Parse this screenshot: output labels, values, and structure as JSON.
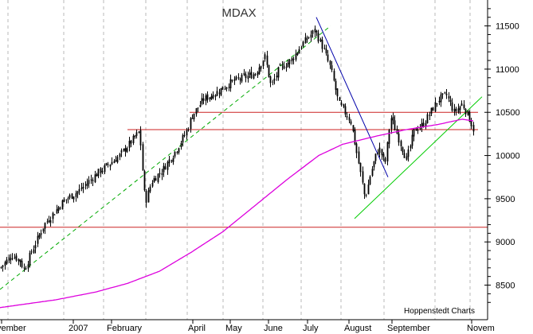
{
  "chart_data": {
    "type": "candlestick",
    "title": "MDAX",
    "credit": "Hoppenstedt Charts",
    "x_tick_labels": [
      "vember",
      "2007",
      "February",
      "April",
      "May",
      "June",
      "July",
      "August",
      "September",
      "Novem"
    ],
    "y_tick_labels": [
      "11500",
      "11000",
      "10500",
      "10000",
      "9500",
      "9000",
      "8500"
    ],
    "ylim": [
      8100,
      11800
    ],
    "grid": "vertical dashed gridlines at month boundaries",
    "horizontal_levels": [
      10500,
      10300,
      9170
    ],
    "moving_average": {
      "color": "#dd00dd",
      "anchors": [
        [
          0,
          8240
        ],
        [
          70,
          8330
        ],
        [
          120,
          8420
        ],
        [
          160,
          8520
        ],
        [
          200,
          8660
        ],
        [
          240,
          8880
        ],
        [
          280,
          9120
        ],
        [
          320,
          9420
        ],
        [
          360,
          9720
        ],
        [
          400,
          10000
        ],
        [
          430,
          10130
        ],
        [
          470,
          10220
        ],
        [
          510,
          10300
        ],
        [
          550,
          10360
        ],
        [
          580,
          10420
        ],
        [
          595,
          10400
        ]
      ]
    },
    "price_path_anchors": [
      [
        0,
        8700
      ],
      [
        15,
        8850
      ],
      [
        25,
        8780
      ],
      [
        30,
        8680
      ],
      [
        40,
        8900
      ],
      [
        55,
        9200
      ],
      [
        80,
        9480
      ],
      [
        100,
        9600
      ],
      [
        120,
        9780
      ],
      [
        150,
        10000
      ],
      [
        175,
        10280
      ],
      [
        178,
        9900
      ],
      [
        182,
        9450
      ],
      [
        190,
        9700
      ],
      [
        205,
        9850
      ],
      [
        220,
        10050
      ],
      [
        235,
        10300
      ],
      [
        240,
        10450
      ],
      [
        255,
        10650
      ],
      [
        270,
        10720
      ],
      [
        290,
        10850
      ],
      [
        305,
        10900
      ],
      [
        320,
        10950
      ],
      [
        332,
        11150
      ],
      [
        340,
        10800
      ],
      [
        350,
        11000
      ],
      [
        365,
        11100
      ],
      [
        380,
        11300
      ],
      [
        395,
        11450
      ],
      [
        405,
        11250
      ],
      [
        415,
        11000
      ],
      [
        425,
        10600
      ],
      [
        440,
        10400
      ],
      [
        450,
        9900
      ],
      [
        458,
        9500
      ],
      [
        465,
        9800
      ],
      [
        475,
        10100
      ],
      [
        483,
        9900
      ],
      [
        490,
        10450
      ],
      [
        500,
        10200
      ],
      [
        510,
        9950
      ],
      [
        520,
        10300
      ],
      [
        530,
        10350
      ],
      [
        540,
        10500
      ],
      [
        550,
        10650
      ],
      [
        560,
        10700
      ],
      [
        570,
        10500
      ],
      [
        580,
        10600
      ],
      [
        588,
        10450
      ],
      [
        594,
        10300
      ]
    ],
    "trendlines": [
      {
        "color": "#00aa00",
        "style": "dashed",
        "from": [
          0,
          8450
        ],
        "to": [
          415,
          11500
        ]
      },
      {
        "color": "#0000aa",
        "style": "solid",
        "from": [
          397,
          11600
        ],
        "to": [
          487,
          9750
        ]
      },
      {
        "color": "#00cc00",
        "style": "solid",
        "from": [
          445,
          9270
        ],
        "to": [
          605,
          10680
        ]
      }
    ]
  }
}
